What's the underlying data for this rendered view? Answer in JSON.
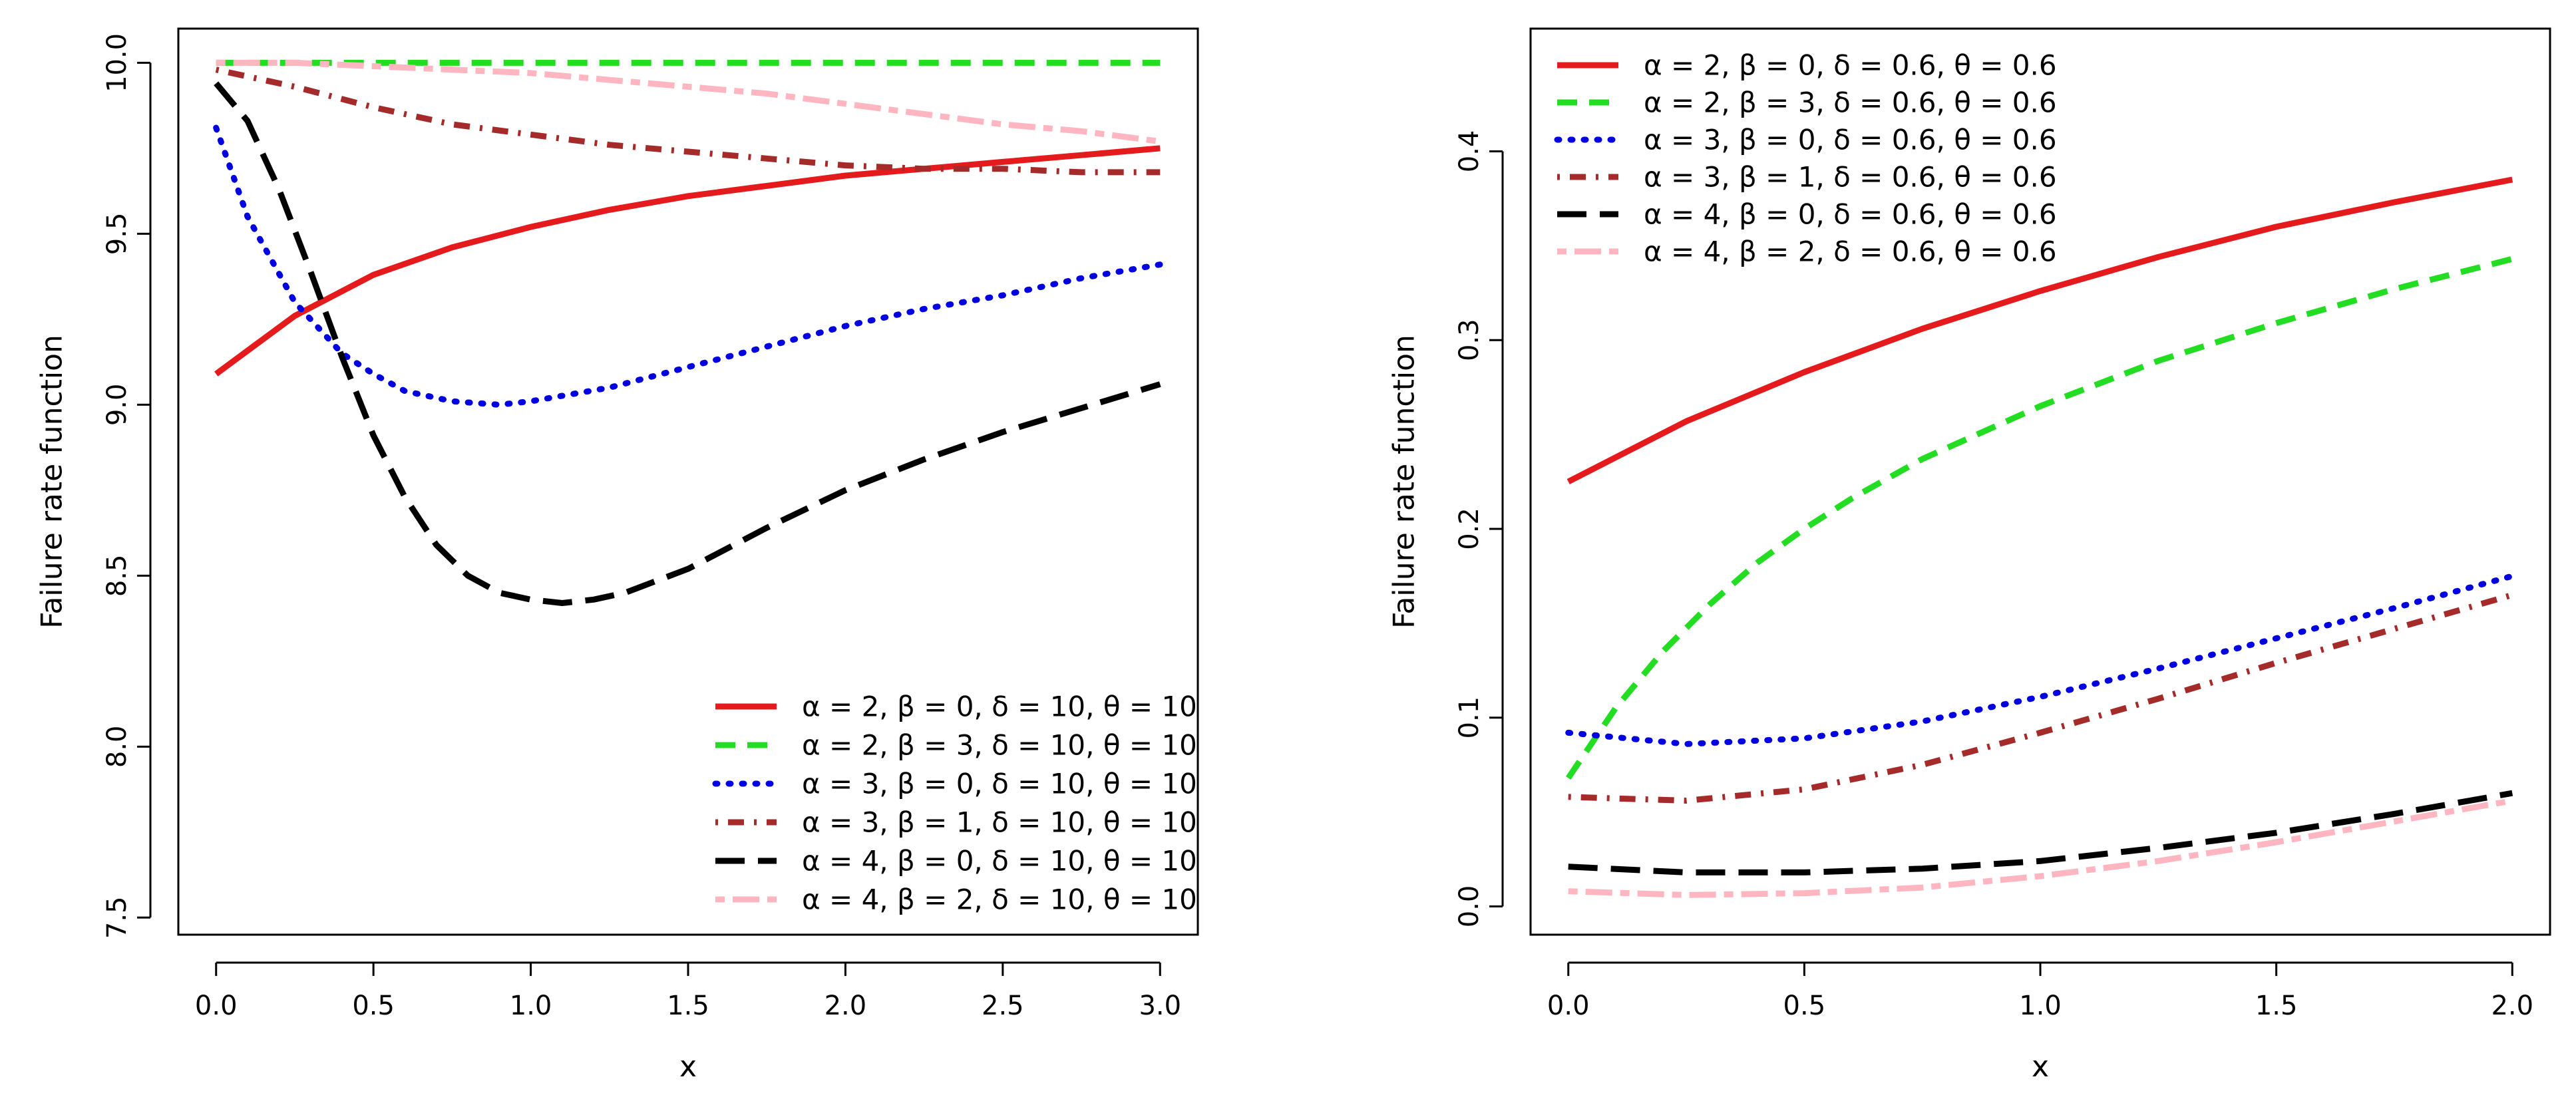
{
  "chart_data": [
    {
      "type": "line",
      "title": "",
      "xlabel": "x",
      "ylabel": "Failure rate function",
      "xlim": [
        -0.12,
        3.12
      ],
      "ylim": [
        7.45,
        10.1
      ],
      "xticks": [
        "0.0",
        "0.5",
        "1.0",
        "1.5",
        "2.0",
        "2.5",
        "3.0"
      ],
      "xtick_values": [
        0,
        0.5,
        1,
        1.5,
        2,
        2.5,
        3
      ],
      "yticks": [
        "7.5",
        "8.0",
        "8.5",
        "9.0",
        "9.5",
        "10.0"
      ],
      "ytick_values": [
        7.5,
        8,
        8.5,
        9,
        9.5,
        10
      ],
      "grid": false,
      "legend_position": "bottom-right",
      "series": [
        {
          "name": "α = 2, β = 0, δ = 10, θ = 10",
          "color": "#e41a1c",
          "style": "solid",
          "x": [
            0,
            0.25,
            0.5,
            0.75,
            1,
            1.25,
            1.5,
            1.75,
            2,
            2.25,
            2.5,
            2.75,
            3
          ],
          "y": [
            9.09,
            9.26,
            9.38,
            9.46,
            9.52,
            9.57,
            9.61,
            9.64,
            9.67,
            9.69,
            9.71,
            9.73,
            9.75
          ]
        },
        {
          "name": "α = 2, β = 3, δ = 10, θ = 10",
          "color": "#22dd22",
          "style": "dashed",
          "x": [
            0,
            0.5,
            1,
            1.5,
            2,
            2.5,
            3
          ],
          "y": [
            10.0,
            10.0,
            10.0,
            10.0,
            10.0,
            10.0,
            10.0
          ]
        },
        {
          "name": "α = 3, β = 0, δ = 10, θ = 10",
          "color": "#0000e0",
          "style": "dotted",
          "x": [
            0,
            0.1,
            0.25,
            0.4,
            0.5,
            0.6,
            0.75,
            0.9,
            1,
            1.25,
            1.5,
            1.75,
            2,
            2.25,
            2.5,
            2.75,
            3
          ],
          "y": [
            9.81,
            9.55,
            9.3,
            9.15,
            9.09,
            9.04,
            9.01,
            9.0,
            9.01,
            9.05,
            9.11,
            9.17,
            9.23,
            9.28,
            9.32,
            9.37,
            9.41
          ]
        },
        {
          "name": "α = 3, β = 1, δ = 10, θ = 10",
          "color": "#a52a2a",
          "style": "dotdash",
          "x": [
            0,
            0.25,
            0.5,
            0.75,
            1,
            1.25,
            1.5,
            1.75,
            2,
            2.25,
            2.5,
            2.75,
            3
          ],
          "y": [
            9.98,
            9.93,
            9.87,
            9.82,
            9.79,
            9.76,
            9.74,
            9.72,
            9.7,
            9.69,
            9.69,
            9.68,
            9.68
          ]
        },
        {
          "name": "α = 4, β = 0, δ = 10, θ = 10",
          "color": "#000000",
          "style": "longdash",
          "x": [
            0,
            0.1,
            0.2,
            0.3,
            0.4,
            0.5,
            0.6,
            0.7,
            0.8,
            0.9,
            1,
            1.1,
            1.2,
            1.3,
            1.5,
            1.75,
            2,
            2.25,
            2.5,
            2.75,
            3
          ],
          "y": [
            9.94,
            9.83,
            9.63,
            9.39,
            9.14,
            8.91,
            8.73,
            8.59,
            8.5,
            8.45,
            8.43,
            8.42,
            8.43,
            8.45,
            8.52,
            8.64,
            8.75,
            8.84,
            8.92,
            8.99,
            9.06
          ]
        },
        {
          "name": "α = 4, β = 2, δ = 10, θ = 10",
          "color": "#ffb6c1",
          "style": "twodash",
          "x": [
            0,
            0.25,
            0.5,
            0.75,
            1,
            1.25,
            1.5,
            1.75,
            2,
            2.25,
            2.5,
            2.75,
            3
          ],
          "y": [
            10.0,
            10.0,
            9.99,
            9.98,
            9.97,
            9.95,
            9.93,
            9.91,
            9.88,
            9.85,
            9.82,
            9.8,
            9.77
          ]
        }
      ]
    },
    {
      "type": "line",
      "title": "",
      "xlabel": "x",
      "ylabel": "Failure rate function",
      "xlim": [
        -0.08,
        2.08
      ],
      "ylim": [
        -0.015,
        0.465
      ],
      "xticks": [
        "0.0",
        "0.5",
        "1.0",
        "1.5",
        "2.0"
      ],
      "xtick_values": [
        0,
        0.5,
        1,
        1.5,
        2
      ],
      "yticks": [
        "0.0",
        "0.1",
        "0.2",
        "0.3",
        "0.4"
      ],
      "ytick_values": [
        0,
        0.1,
        0.2,
        0.3,
        0.4
      ],
      "grid": false,
      "legend_position": "top-left",
      "series": [
        {
          "name": "α = 2, β = 0, δ = 0.6, θ = 0.6",
          "color": "#e41a1c",
          "style": "solid",
          "x": [
            0,
            0.25,
            0.5,
            0.75,
            1,
            1.25,
            1.5,
            1.75,
            2
          ],
          "y": [
            0.225,
            0.257,
            0.283,
            0.306,
            0.326,
            0.344,
            0.36,
            0.373,
            0.385
          ]
        },
        {
          "name": "α = 2, β = 3, δ = 0.6, θ = 0.6",
          "color": "#22dd22",
          "style": "dashed",
          "x": [
            0,
            0.1,
            0.2,
            0.3,
            0.4,
            0.5,
            0.6,
            0.75,
            1,
            1.25,
            1.5,
            1.75,
            2
          ],
          "y": [
            0.068,
            0.105,
            0.135,
            0.16,
            0.182,
            0.2,
            0.216,
            0.237,
            0.265,
            0.289,
            0.309,
            0.327,
            0.343
          ]
        },
        {
          "name": "α = 3, β = 0, δ = 0.6, θ = 0.6",
          "color": "#0000e0",
          "style": "dotted",
          "x": [
            0,
            0.25,
            0.5,
            0.75,
            1,
            1.25,
            1.5,
            1.75,
            2
          ],
          "y": [
            0.092,
            0.086,
            0.089,
            0.098,
            0.111,
            0.126,
            0.142,
            0.158,
            0.175
          ]
        },
        {
          "name": "α = 3, β = 1, δ = 0.6, θ = 0.6",
          "color": "#a52a2a",
          "style": "dotdash",
          "x": [
            0,
            0.25,
            0.5,
            0.75,
            1,
            1.25,
            1.5,
            1.75,
            2
          ],
          "y": [
            0.058,
            0.056,
            0.062,
            0.075,
            0.092,
            0.11,
            0.129,
            0.147,
            0.165
          ]
        },
        {
          "name": "α = 4, β = 0, δ = 0.6, θ = 0.6",
          "color": "#000000",
          "style": "longdash",
          "x": [
            0,
            0.25,
            0.5,
            0.75,
            1,
            1.25,
            1.5,
            1.75,
            2
          ],
          "y": [
            0.021,
            0.018,
            0.018,
            0.02,
            0.024,
            0.031,
            0.039,
            0.049,
            0.06
          ]
        },
        {
          "name": "α = 4, β = 2, δ = 0.6, θ = 0.6",
          "color": "#ffb6c1",
          "style": "twodash",
          "x": [
            0,
            0.25,
            0.5,
            0.75,
            1,
            1.25,
            1.5,
            1.75,
            2
          ],
          "y": [
            0.008,
            0.006,
            0.007,
            0.01,
            0.016,
            0.024,
            0.034,
            0.045,
            0.056
          ]
        }
      ]
    }
  ]
}
